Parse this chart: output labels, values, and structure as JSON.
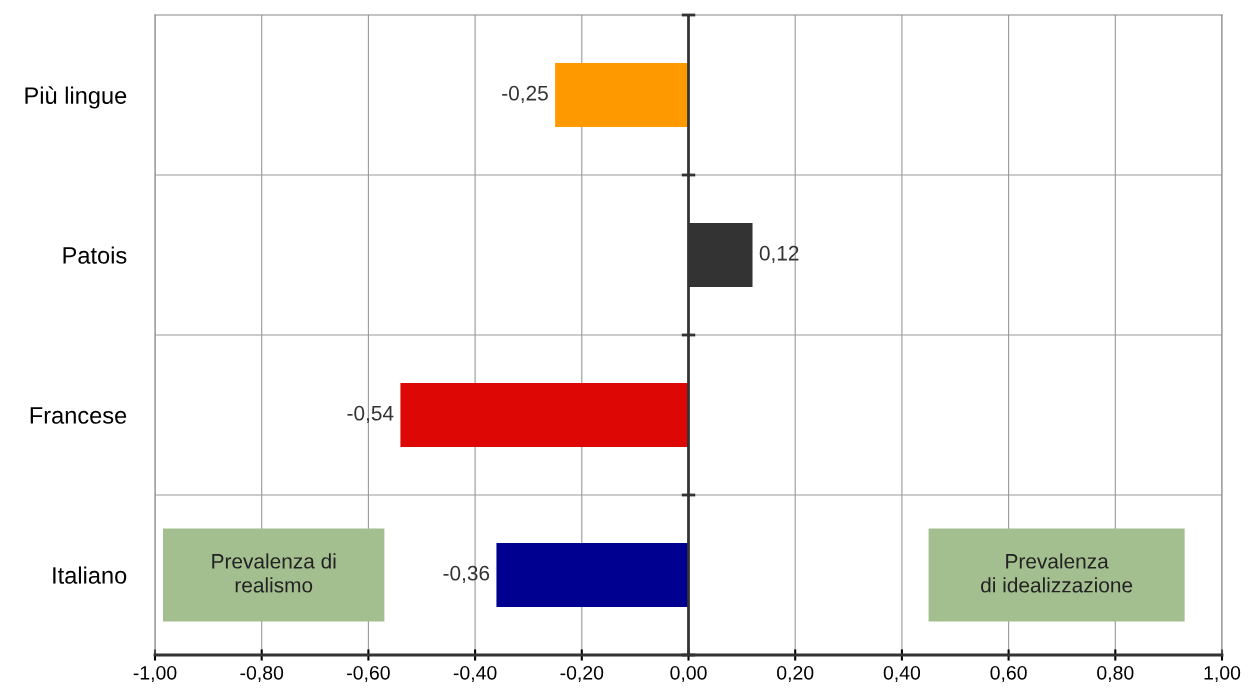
{
  "chart_data": {
    "type": "bar",
    "orientation": "horizontal",
    "categories": [
      "Più lingue",
      "Patois",
      "Francese",
      "Italiano"
    ],
    "values": [
      -0.25,
      0.12,
      -0.54,
      -0.36
    ],
    "colors": [
      "#ff9900",
      "#333333",
      "#dd0806",
      "#000090"
    ],
    "value_labels": [
      "-0,25",
      "0,12",
      "-0,54",
      "-0,36"
    ],
    "xlim": [
      -1,
      1
    ],
    "xticks": [
      {
        "value": -1,
        "label": "-1,00"
      },
      {
        "value": -0.8,
        "label": "-0,80"
      },
      {
        "value": -0.6,
        "label": "-0,60"
      },
      {
        "value": -0.4,
        "label": "-0,40"
      },
      {
        "value": -0.2,
        "label": "-0,20"
      },
      {
        "value": 0,
        "label": "0,00"
      },
      {
        "value": 0.2,
        "label": "0,20"
      },
      {
        "value": 0.4,
        "label": "0,40"
      },
      {
        "value": 0.6,
        "label": "0,60"
      },
      {
        "value": 0.8,
        "label": "0,80"
      },
      {
        "value": 1,
        "label": "1,00"
      }
    ],
    "grid": true,
    "annotations": [
      "Prevalenza di\nrealismo",
      "Prevalenza\ndi idealizzazione"
    ]
  }
}
